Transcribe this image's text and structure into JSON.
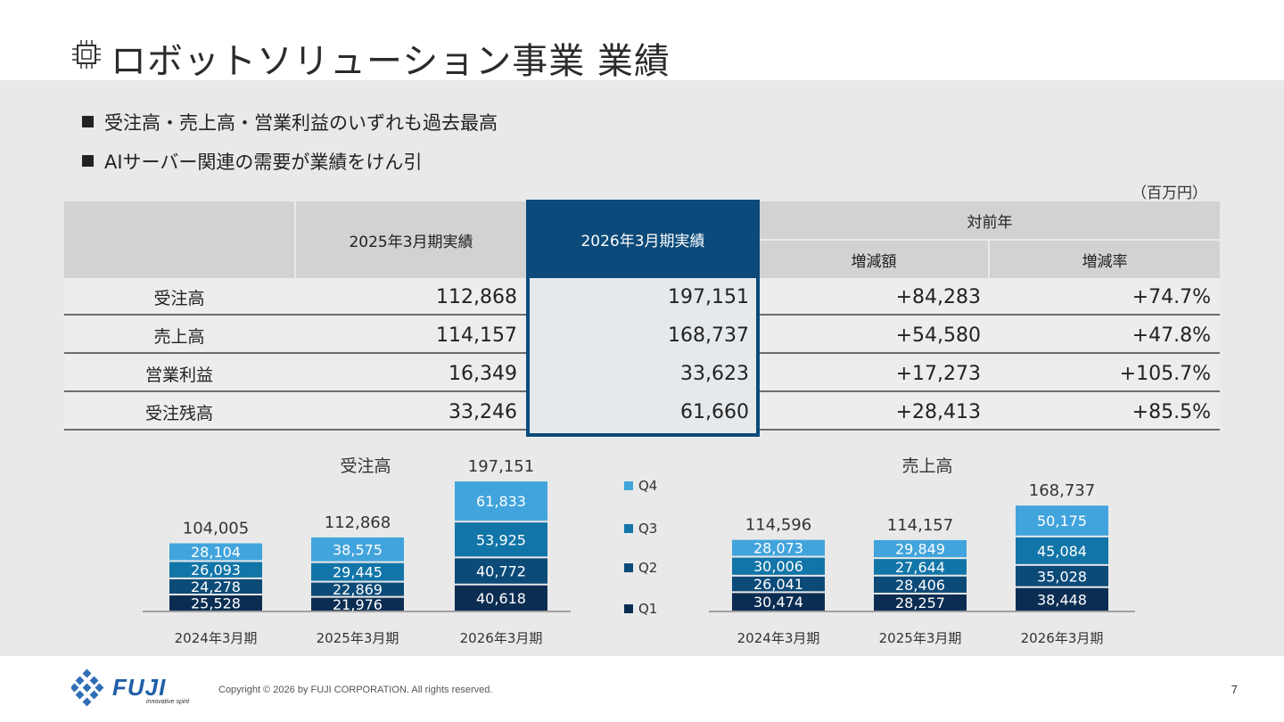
{
  "title": "ロボットソリューション事業 業績",
  "bullets": [
    "受注高・売上高・営業利益のいずれも過去最高",
    "AIサーバー関連の需要が業績をけん引"
  ],
  "unit": "（百万円）",
  "table": {
    "col_prev": "2025年3月期実績",
    "col_curr": "2026年3月期実績",
    "col_yoy": "対前年",
    "col_diff": "増減額",
    "col_rate": "増減率",
    "rows": [
      {
        "label": "受注高",
        "prev": "112,868",
        "curr": "197,151",
        "diff": "+84,283",
        "rate": "+74.7%"
      },
      {
        "label": "売上高",
        "prev": "114,157",
        "curr": "168,737",
        "diff": "+54,580",
        "rate": "+47.8%"
      },
      {
        "label": "営業利益",
        "prev": "16,349",
        "curr": "33,623",
        "diff": "+17,273",
        "rate": "+105.7%"
      },
      {
        "label": "受注残高",
        "prev": "33,246",
        "curr": "61,660",
        "diff": "+28,413",
        "rate": "+85.5%"
      }
    ]
  },
  "legend": [
    "Q4",
    "Q3",
    "Q2",
    "Q1"
  ],
  "colors": {
    "Q1": "#0b2d52",
    "Q2": "#0c4a78",
    "Q3": "#1275a8",
    "Q4": "#42a4dc",
    "highlight": "#0b4a7a"
  },
  "chart_data": [
    {
      "type": "bar",
      "stacked": true,
      "title": "受注高",
      "categories": [
        "2024年3月期",
        "2025年3月期",
        "2026年3月期"
      ],
      "totals": [
        "104,005",
        "112,868",
        "197,151"
      ],
      "series": [
        {
          "name": "Q1",
          "values": [
            25528,
            21976,
            40618
          ],
          "labels": [
            "25,528",
            "21,976",
            "40,618"
          ]
        },
        {
          "name": "Q2",
          "values": [
            24278,
            22869,
            40772
          ],
          "labels": [
            "24,278",
            "22,869",
            "40,772"
          ]
        },
        {
          "name": "Q3",
          "values": [
            26093,
            29445,
            53925
          ],
          "labels": [
            "26,093",
            "29,445",
            "53,925"
          ]
        },
        {
          "name": "Q4",
          "values": [
            28104,
            38575,
            61833
          ],
          "labels": [
            "28,104",
            "38,575",
            "61,833"
          ]
        }
      ]
    },
    {
      "type": "bar",
      "stacked": true,
      "title": "売上高",
      "categories": [
        "2024年3月期",
        "2025年3月期",
        "2026年3月期"
      ],
      "totals": [
        "114,596",
        "114,157",
        "168,737"
      ],
      "series": [
        {
          "name": "Q1",
          "values": [
            30474,
            28257,
            38448
          ],
          "labels": [
            "30,474",
            "28,257",
            "38,448"
          ]
        },
        {
          "name": "Q2",
          "values": [
            26041,
            28406,
            35028
          ],
          "labels": [
            "26,041",
            "28,406",
            "35,028"
          ]
        },
        {
          "name": "Q3",
          "values": [
            30006,
            27644,
            45084
          ],
          "labels": [
            "30,006",
            "27,644",
            "45,084"
          ]
        },
        {
          "name": "Q4",
          "values": [
            28073,
            29849,
            50175
          ],
          "labels": [
            "28,073",
            "29,849",
            "50,175"
          ]
        }
      ]
    }
  ],
  "footer": {
    "logo_text": "FUJI",
    "logo_tagline": "innovative spirit",
    "copyright": "Copyright © 2026 by FUJI CORPORATION. All rights reserved.",
    "page": "7"
  }
}
